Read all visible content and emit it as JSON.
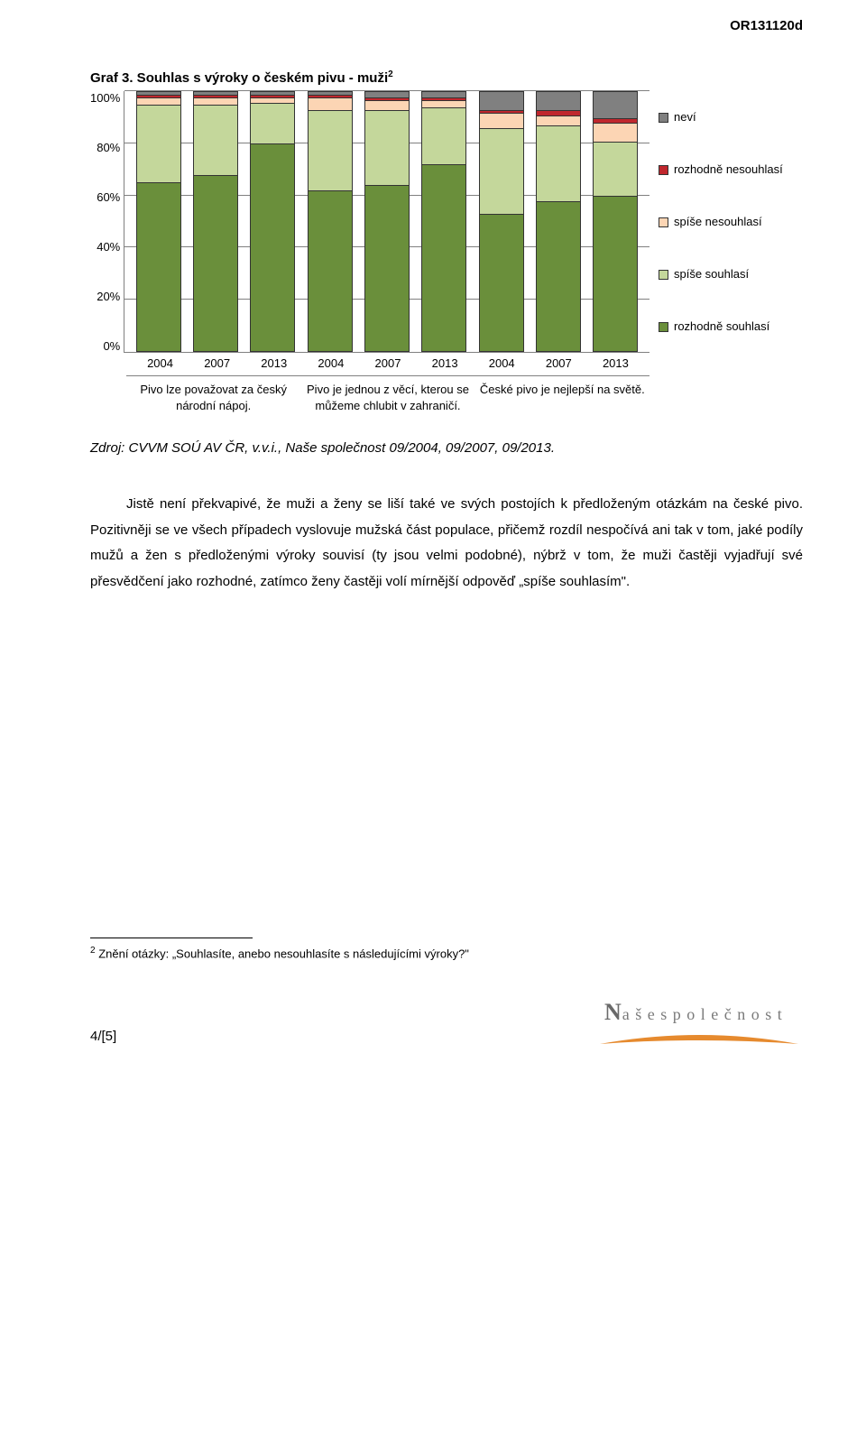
{
  "doc_id": "OR131120d",
  "chart": {
    "type": "stacked-bar-100",
    "title": "Graf 3. Souhlas s výroky o českém pivu - muži",
    "title_sup": "2",
    "y_ticks": [
      "0%",
      "20%",
      "40%",
      "60%",
      "80%",
      "100%"
    ],
    "ylim": [
      0,
      100
    ],
    "background_color": "#ffffff",
    "grid_color": "#808080",
    "categories_years": [
      "2004",
      "2007",
      "2013",
      "2004",
      "2007",
      "2013",
      "2004",
      "2007",
      "2013"
    ],
    "groups": [
      "Pivo lze považovat za český národní nápoj.",
      "Pivo je jednou z věcí, kterou se můžeme chlubit v zahraničí.",
      "České pivo je nejlepší na světě."
    ],
    "series": [
      {
        "key": "rozhodne_souhlasi",
        "label": "rozhodně souhlasí",
        "color": "#6a8f3b"
      },
      {
        "key": "spise_souhlasi",
        "label": "spíše souhlasí",
        "color": "#c4d79b"
      },
      {
        "key": "spise_nesouhlasi",
        "label": "spíše nesouhlasí",
        "color": "#fcd5b4"
      },
      {
        "key": "rozhodne_nesouhlasi",
        "label": "rozhodně nesouhlasí",
        "color": "#c0272d"
      },
      {
        "key": "nevi",
        "label": "neví",
        "color": "#808080"
      }
    ],
    "data": [
      {
        "rozhodne_souhlasi": 65,
        "spise_souhlasi": 30,
        "spise_nesouhlasi": 3,
        "rozhodne_nesouhlasi": 1,
        "nevi": 1
      },
      {
        "rozhodne_souhlasi": 68,
        "spise_souhlasi": 27,
        "spise_nesouhlasi": 3,
        "rozhodne_nesouhlasi": 1,
        "nevi": 1
      },
      {
        "rozhodne_souhlasi": 80,
        "spise_souhlasi": 16,
        "spise_nesouhlasi": 2,
        "rozhodne_nesouhlasi": 1,
        "nevi": 1
      },
      {
        "rozhodne_souhlasi": 62,
        "spise_souhlasi": 31,
        "spise_nesouhlasi": 5,
        "rozhodne_nesouhlasi": 1,
        "nevi": 1
      },
      {
        "rozhodne_souhlasi": 64,
        "spise_souhlasi": 29,
        "spise_nesouhlasi": 4,
        "rozhodne_nesouhlasi": 1,
        "nevi": 2
      },
      {
        "rozhodne_souhlasi": 72,
        "spise_souhlasi": 22,
        "spise_nesouhlasi": 3,
        "rozhodne_nesouhlasi": 1,
        "nevi": 2
      },
      {
        "rozhodne_souhlasi": 53,
        "spise_souhlasi": 33,
        "spise_nesouhlasi": 6,
        "rozhodne_nesouhlasi": 1,
        "nevi": 7
      },
      {
        "rozhodne_souhlasi": 58,
        "spise_souhlasi": 29,
        "spise_nesouhlasi": 4,
        "rozhodne_nesouhlasi": 2,
        "nevi": 7
      },
      {
        "rozhodne_souhlasi": 60,
        "spise_souhlasi": 21,
        "spise_nesouhlasi": 7,
        "rozhodne_nesouhlasi": 2,
        "nevi": 10
      }
    ]
  },
  "source": "Zdroj: CVVM SOÚ AV ČR, v.v.i., Naše společnost 09/2004, 09/2007, 09/2013.",
  "paragraph": "Jistě není překvapivé, že muži a ženy se liší také ve svých postojích k předloženým otázkám na české pivo. Pozitivněji se ve všech případech vyslovuje mužská část populace, přičemž rozdíl nespočívá ani tak v tom, jaké podíly mužů a žen s předloženými výroky souvisí (ty jsou velmi podobné), nýbrž v tom, že muži častěji vyjadřují své přesvědčení jako rozhodné, zatímco ženy častěji volí mírnější odpověď „spíše souhlasím\".",
  "footnote": "Znění otázky: „Souhlasíte, anebo nesouhlasíte s následujícími výroky?\"",
  "footnote_num": "2",
  "page_num": "4/[5]",
  "logo": {
    "text_big": "N",
    "text_rest": "a š e   s p o l e č n o s t",
    "swoosh_color": "#e68a2e"
  }
}
